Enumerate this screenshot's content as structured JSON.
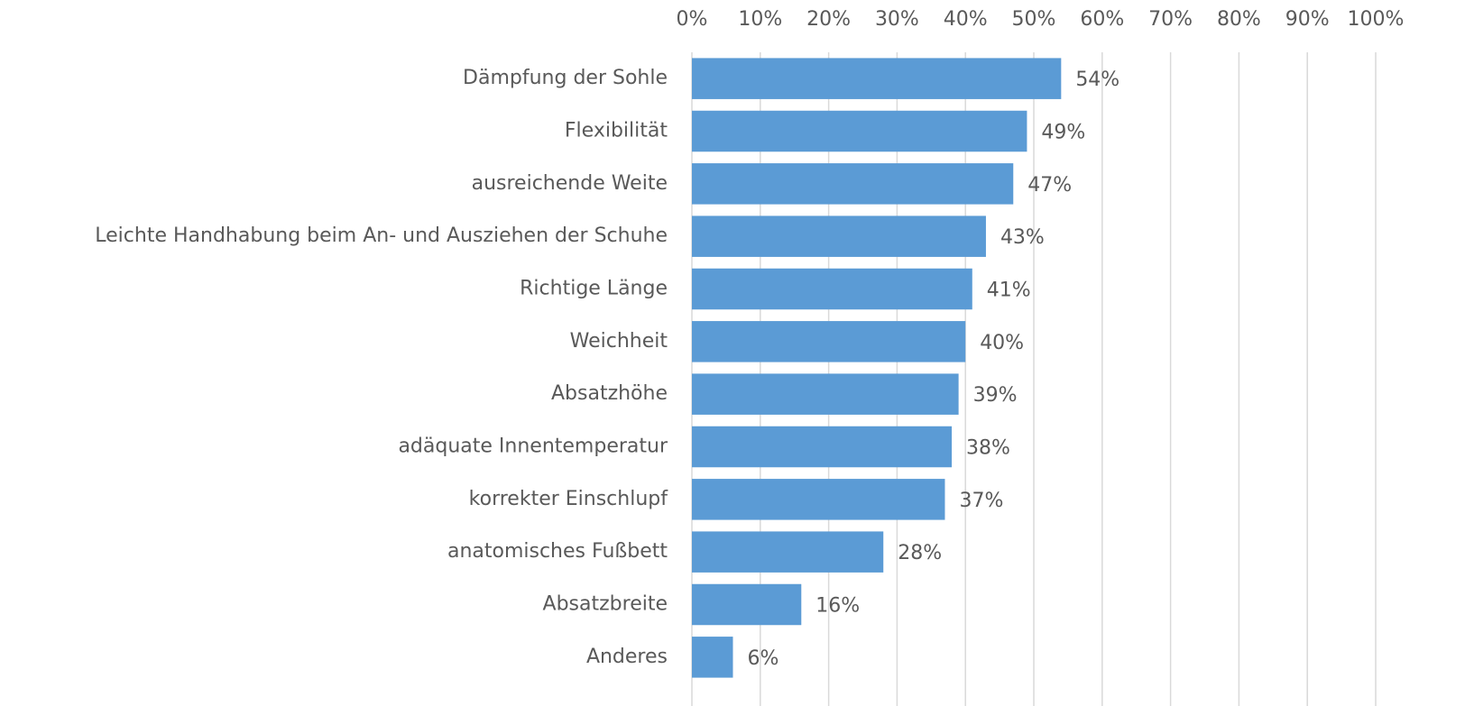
{
  "chart_data": {
    "type": "hbar",
    "categories": [
      "Dämpfung der Sohle",
      "Flexibilität",
      "ausreichende Weite",
      "Leichte Handhabung beim An- und Ausziehen der Schuhe",
      "Richtige Länge",
      "Weichheit",
      "Absatzhöhe",
      "adäquate Innentemperatur",
      "korrekter Einschlupf",
      "anatomisches Fußbett",
      "Absatzbreite",
      "Anderes"
    ],
    "values": [
      54,
      49,
      47,
      43,
      41,
      40,
      39,
      38,
      37,
      28,
      16,
      6
    ],
    "value_labels": [
      "54%",
      "49%",
      "47%",
      "43%",
      "41%",
      "40%",
      "39%",
      "38%",
      "37%",
      "28%",
      "16%",
      "6%"
    ],
    "color": "#5b9bd5",
    "xlim": [
      0,
      100
    ],
    "xticks": [
      {
        "value": 0,
        "label": "0%"
      },
      {
        "value": 10,
        "label": "10%"
      },
      {
        "value": 20,
        "label": "20%"
      },
      {
        "value": 30,
        "label": "30%"
      },
      {
        "value": 40,
        "label": "40%"
      },
      {
        "value": 50,
        "label": "50%"
      },
      {
        "value": 60,
        "label": "60%"
      },
      {
        "value": 70,
        "label": "70%"
      },
      {
        "value": 80,
        "label": "80%"
      },
      {
        "value": 90,
        "label": "90%"
      },
      {
        "value": 100,
        "label": "100%"
      }
    ],
    "grid": true
  }
}
